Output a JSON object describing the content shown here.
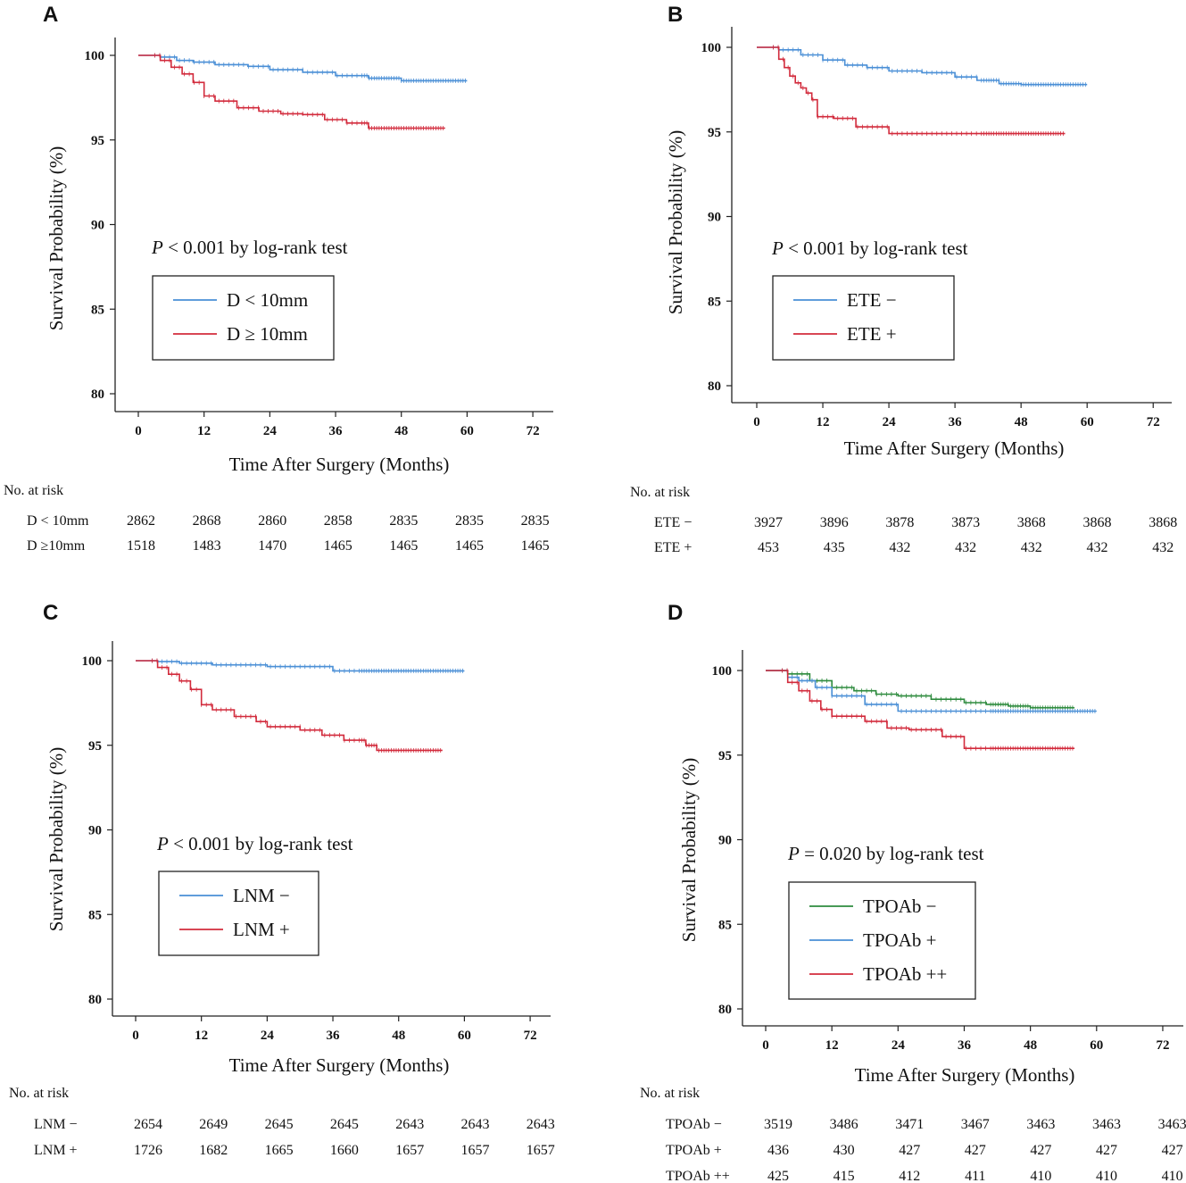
{
  "chart_data": [
    {
      "type": "line",
      "panel": "A",
      "title": "",
      "xlabel": "Time After Surgery (Months)",
      "ylabel": "Survival Probability (%)",
      "xlim": [
        0,
        72
      ],
      "ylim": [
        80,
        100
      ],
      "x_ticks": [
        "0",
        "12",
        "24",
        "36",
        "48",
        "60",
        "72"
      ],
      "y_ticks": [
        "80",
        "85",
        "90",
        "95",
        "100"
      ],
      "test_italic": "P",
      "test_text": " < 0.001 by log-rank test",
      "risk_title": "No. at risk",
      "series": [
        {
          "name": "D < 10mm",
          "risk_label": "D < 10mm",
          "color": "#4a8fd6",
          "x": [
            0,
            4,
            7,
            10,
            14,
            20,
            24,
            30,
            36,
            42,
            48,
            60
          ],
          "y": [
            100,
            99.9,
            99.7,
            99.6,
            99.45,
            99.35,
            99.15,
            99.0,
            98.8,
            98.65,
            98.5,
            98.5
          ],
          "risk": [
            "2862",
            "2868",
            "2860",
            "2858",
            "2835",
            "2835",
            "2835"
          ]
        },
        {
          "name": "D ≥ 10mm",
          "risk_label": "D ≥10mm",
          "color": "#d22b3c",
          "x": [
            0,
            4,
            6,
            8,
            10,
            12,
            14,
            18,
            22,
            26,
            30,
            34,
            38,
            42,
            48,
            56
          ],
          "y": [
            100,
            99.7,
            99.3,
            98.9,
            98.4,
            97.6,
            97.3,
            96.9,
            96.7,
            96.55,
            96.5,
            96.2,
            96.0,
            95.7,
            95.7,
            95.7
          ],
          "risk": [
            "1518",
            "1483",
            "1470",
            "1465",
            "1465",
            "1465",
            "1465"
          ]
        }
      ]
    },
    {
      "type": "line",
      "panel": "B",
      "title": "",
      "xlabel": "Time After Surgery (Months)",
      "ylabel": "Survival Probability (%)",
      "xlim": [
        0,
        72
      ],
      "ylim": [
        80,
        100
      ],
      "x_ticks": [
        "0",
        "12",
        "24",
        "36",
        "48",
        "60",
        "72"
      ],
      "y_ticks": [
        "80",
        "85",
        "90",
        "95",
        "100"
      ],
      "test_italic": "P",
      "test_text": " < 0.001 by log-rank test",
      "risk_title": "No. at risk",
      "series": [
        {
          "name": "ETE −",
          "risk_label": "ETE −",
          "color": "#4a8fd6",
          "x": [
            0,
            4,
            8,
            12,
            16,
            20,
            24,
            30,
            36,
            40,
            44,
            48,
            60
          ],
          "y": [
            100,
            99.85,
            99.55,
            99.25,
            98.95,
            98.8,
            98.6,
            98.5,
            98.25,
            98.05,
            97.85,
            97.8,
            97.8
          ],
          "risk": [
            "3927",
            "3896",
            "3878",
            "3873",
            "3868",
            "3868",
            "3868"
          ]
        },
        {
          "name": "ETE +",
          "risk_label": "ETE +",
          "color": "#d22b3c",
          "x": [
            0,
            4,
            5,
            6,
            7,
            8,
            9,
            10,
            11,
            14,
            18,
            24,
            56
          ],
          "y": [
            100,
            99.3,
            98.8,
            98.3,
            97.9,
            97.6,
            97.3,
            96.9,
            95.9,
            95.8,
            95.3,
            94.9,
            94.9
          ],
          "risk": [
            "453",
            "435",
            "432",
            "432",
            "432",
            "432",
            "432"
          ]
        }
      ]
    },
    {
      "type": "line",
      "panel": "C",
      "title": "",
      "xlabel": "Time After Surgery (Months)",
      "ylabel": "Survival Probability (%)",
      "xlim": [
        0,
        72
      ],
      "ylim": [
        80,
        100
      ],
      "x_ticks": [
        "0",
        "12",
        "24",
        "36",
        "48",
        "60",
        "72"
      ],
      "y_ticks": [
        "80",
        "85",
        "90",
        "95",
        "100"
      ],
      "test_italic": "P",
      "test_text": " < 0.001 by log-rank test",
      "risk_title": "No. at risk",
      "series": [
        {
          "name": "LNM −",
          "risk_label": "LNM −",
          "color": "#4a8fd6",
          "x": [
            0,
            4,
            8,
            14,
            24,
            36,
            48,
            60
          ],
          "y": [
            100,
            99.95,
            99.85,
            99.75,
            99.65,
            99.4,
            99.4,
            99.4
          ],
          "risk": [
            "2654",
            "2649",
            "2645",
            "2645",
            "2643",
            "2643",
            "2643"
          ]
        },
        {
          "name": "LNM +",
          "risk_label": "LNM +",
          "color": "#d22b3c",
          "x": [
            0,
            4,
            6,
            8,
            10,
            12,
            14,
            18,
            22,
            24,
            30,
            34,
            38,
            42,
            44,
            48,
            56
          ],
          "y": [
            100,
            99.6,
            99.2,
            98.8,
            98.3,
            97.4,
            97.1,
            96.7,
            96.4,
            96.1,
            95.9,
            95.6,
            95.3,
            95.0,
            94.7,
            94.7,
            94.7
          ],
          "risk": [
            "1726",
            "1682",
            "1665",
            "1660",
            "1657",
            "1657",
            "1657"
          ]
        }
      ]
    },
    {
      "type": "line",
      "panel": "D",
      "title": "",
      "xlabel": "Time After Surgery (Months)",
      "ylabel": "Survival Probability (%)",
      "xlim": [
        0,
        72
      ],
      "ylim": [
        80,
        100
      ],
      "x_ticks": [
        "0",
        "12",
        "24",
        "36",
        "48",
        "60",
        "72"
      ],
      "y_ticks": [
        "80",
        "85",
        "90",
        "95",
        "100"
      ],
      "test_italic": "P",
      "test_text": " = 0.020 by log-rank test",
      "risk_title": "No. at risk",
      "series": [
        {
          "name": "TPOAb −",
          "risk_label": "TPOAb −",
          "color": "#2e8b3e",
          "x": [
            0,
            4,
            8,
            12,
            16,
            20,
            24,
            30,
            36,
            40,
            44,
            48,
            56
          ],
          "y": [
            100,
            99.8,
            99.4,
            99.0,
            98.8,
            98.6,
            98.5,
            98.3,
            98.1,
            98.0,
            97.9,
            97.8,
            97.8
          ],
          "risk": [
            "3519",
            "3486",
            "3471",
            "3467",
            "3463",
            "3463",
            "3463"
          ]
        },
        {
          "name": "TPOAb +",
          "risk_label": "TPOAb +",
          "color": "#4a8fd6",
          "x": [
            0,
            4,
            6,
            9,
            12,
            18,
            24,
            60
          ],
          "y": [
            100,
            99.6,
            99.4,
            99.0,
            98.5,
            98.0,
            97.6,
            97.6
          ],
          "risk": [
            "436",
            "430",
            "427",
            "427",
            "427",
            "427",
            "427"
          ]
        },
        {
          "name": "TPOAb ++",
          "risk_label": "TPOAb ++",
          "color": "#d22b3c",
          "x": [
            0,
            4,
            6,
            8,
            10,
            12,
            18,
            22,
            26,
            32,
            36,
            56
          ],
          "y": [
            100,
            99.3,
            98.8,
            98.2,
            97.7,
            97.3,
            97.0,
            96.6,
            96.5,
            96.1,
            95.4,
            95.4
          ],
          "risk": [
            "425",
            "415",
            "412",
            "411",
            "410",
            "410",
            "410"
          ]
        }
      ]
    }
  ]
}
